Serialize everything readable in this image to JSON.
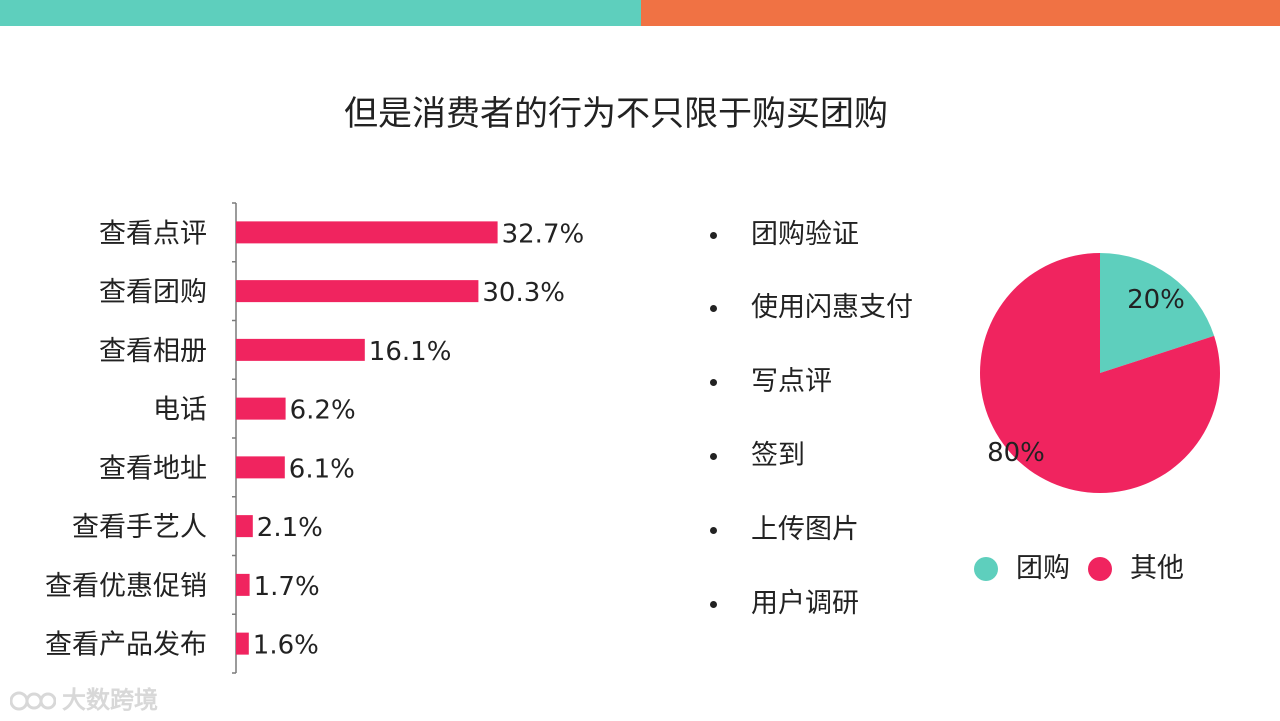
{
  "title": "但是消费者的行为不只限于购买团购",
  "colors": {
    "teal": "#5ecfbd",
    "orange": "#f07244",
    "pink": "#f0245f"
  },
  "bullets": [
    "团购验证",
    "使用闪惠支付",
    "写点评",
    "签到",
    "上传图片",
    "用户调研"
  ],
  "watermark": "大数跨境",
  "chart_data": [
    {
      "type": "bar",
      "orientation": "horizontal",
      "categories": [
        "查看点评",
        "查看团购",
        "查看相册",
        "电话",
        "查看地址",
        "查看手艺人",
        "查看优惠促销",
        "查看产品发布"
      ],
      "values": [
        32.7,
        30.3,
        16.1,
        6.2,
        6.1,
        2.1,
        1.7,
        1.6
      ],
      "data_labels": [
        "32.7%",
        "30.3%",
        "16.1%",
        "6.2%",
        "6.1%",
        "2.1%",
        "1.7%",
        "1.6%"
      ],
      "unit": "%",
      "color": "#f0245f",
      "grid": false
    },
    {
      "type": "pie",
      "labels": [
        "团购",
        "其他"
      ],
      "values": [
        20,
        80
      ],
      "data_labels": [
        "20%",
        "80%"
      ],
      "colors": [
        "#5ecfbd",
        "#f0245f"
      ],
      "legend_position": "bottom"
    }
  ]
}
